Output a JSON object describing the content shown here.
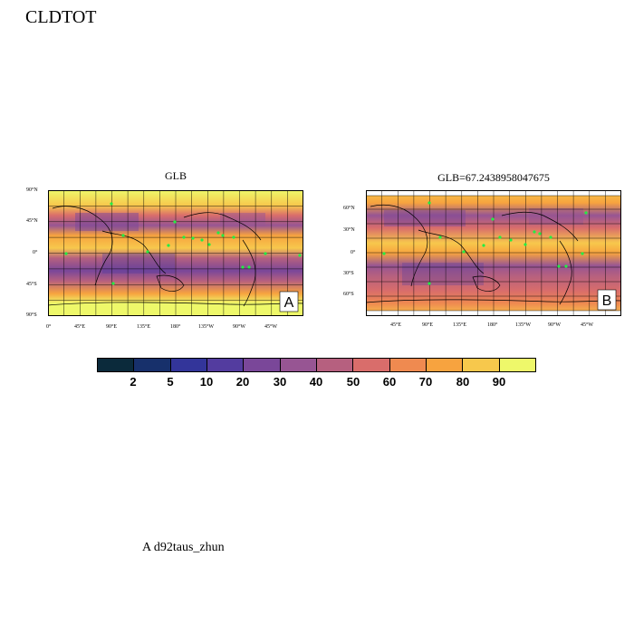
{
  "title": "CLDTOT",
  "panels": [
    {
      "id": "A",
      "title": "GLB",
      "letter": "A",
      "lat_ticks": [
        "90°N",
        "45°N",
        "0°",
        "45°S",
        "90°S"
      ],
      "lon_ticks": [
        "0°",
        "45°E",
        "90°E",
        "135°E",
        "180°",
        "135°W",
        "90°W",
        "45°W"
      ]
    },
    {
      "id": "B",
      "title": "GLB=67.2438958047675",
      "letter": "B",
      "lat_ticks": [
        "60°N",
        "30°N",
        "0°",
        "30°S",
        "60°S"
      ],
      "lon_ticks": [
        "45°E",
        "90°E",
        "135°E",
        "180°",
        "135°W",
        "90°W",
        "45°W"
      ]
    }
  ],
  "colorbar": {
    "labels": [
      "2",
      "5",
      "10",
      "20",
      "30",
      "40",
      "50",
      "60",
      "70",
      "80",
      "90"
    ],
    "colors": [
      "#0b2a3b",
      "#17306b",
      "#33359a",
      "#533c9f",
      "#7a4799",
      "#975593",
      "#b6607f",
      "#d96d6b",
      "#ef8a50",
      "#f7a33f",
      "#f7c84c",
      "#eef86a"
    ]
  },
  "footer": "A  d92taus_zhun"
}
